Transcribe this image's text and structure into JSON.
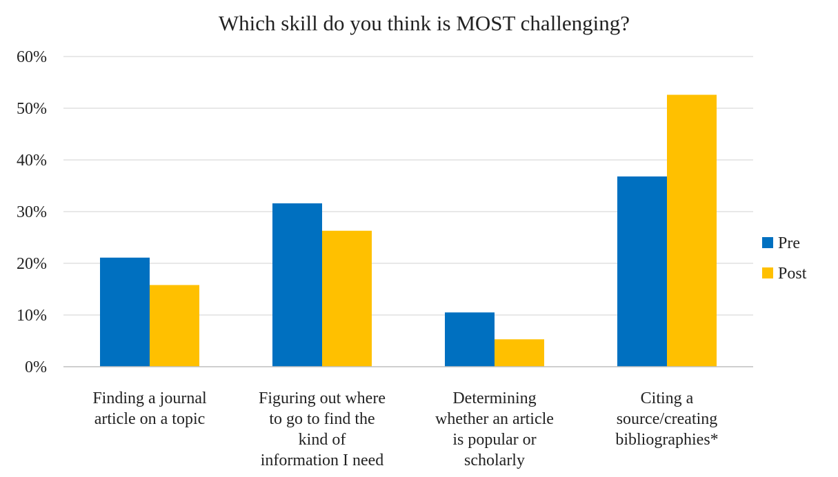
{
  "chart_data": {
    "type": "bar",
    "title": "Which skill  do you think  is MOST challenging?",
    "categories": [
      [
        "Finding a journal",
        "article on a topic"
      ],
      [
        "Figuring out where",
        "to go to find the",
        "kind of",
        "information I need"
      ],
      [
        "Determining",
        "whether an article",
        "is popular or",
        "scholarly"
      ],
      [
        "Citing a",
        "source/creating",
        "bibliographies*"
      ]
    ],
    "series": [
      {
        "name": "Pre",
        "color": "#0070C0",
        "values": [
          21.1,
          31.6,
          10.5,
          36.8
        ]
      },
      {
        "name": "Post",
        "color": "#FFC000",
        "values": [
          15.8,
          26.3,
          5.3,
          52.6
        ]
      }
    ],
    "yticks": [
      "0%",
      "10%",
      "20%",
      "30%",
      "40%",
      "50%",
      "60%"
    ],
    "ylim": [
      0,
      60
    ],
    "grid": true,
    "legend_position": "right"
  }
}
